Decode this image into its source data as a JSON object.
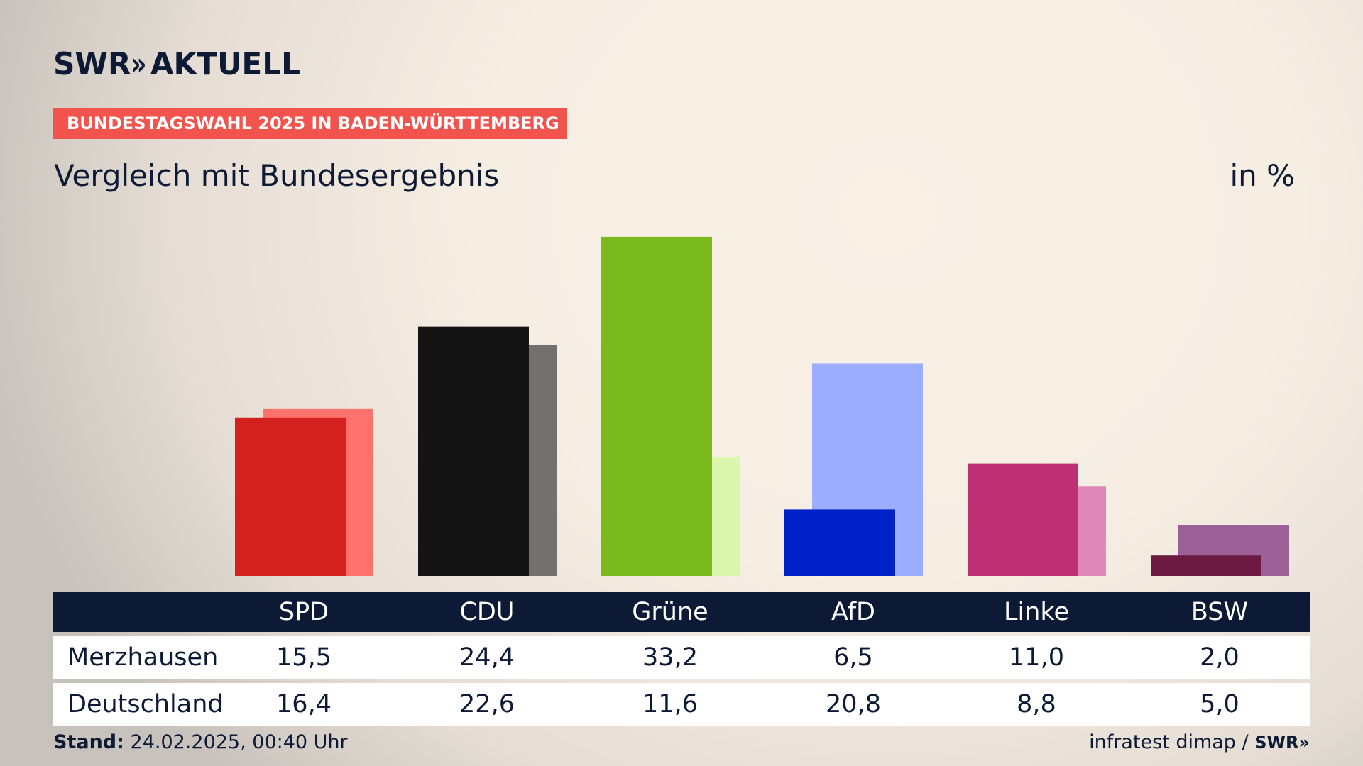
{
  "header": {
    "logo_text": "SWR",
    "logo_chevrons": "»",
    "logo_suffix": "AKTUELL",
    "banner": "BUNDESTAGSWAHL 2025 IN BADEN-WÜRTTEMBERG",
    "subtitle": "Vergleich mit Bundesergebnis",
    "unit": "in %"
  },
  "chart_data": {
    "type": "bar",
    "title": "Vergleich mit Bundesergebnis",
    "ylabel": "in %",
    "ylim": [
      0,
      36
    ],
    "grid": false,
    "categories": [
      "SPD",
      "CDU",
      "Grüne",
      "AfD",
      "Linke",
      "BSW"
    ],
    "series": [
      {
        "name": "Merzhausen",
        "values": [
          15.5,
          24.4,
          33.2,
          6.5,
          11.0,
          2.0
        ],
        "colors": [
          "#d52020",
          "#141414",
          "#7aba1d",
          "#0021c7",
          "#bd3073",
          "#6c1a42"
        ]
      },
      {
        "name": "Deutschland",
        "values": [
          16.4,
          22.6,
          11.6,
          20.8,
          8.8,
          5.0
        ],
        "colors": [
          "#ff736c",
          "#73716f",
          "#dbf7ad",
          "#9cacff",
          "#de89b7",
          "#9b6097"
        ]
      }
    ]
  },
  "table": {
    "headers": [
      "SPD",
      "CDU",
      "Grüne",
      "AfD",
      "Linke",
      "BSW"
    ],
    "rows": [
      {
        "label": "Merzhausen",
        "values": [
          "15,5",
          "24,4",
          "33,2",
          "6,5",
          "11,0",
          "2,0"
        ]
      },
      {
        "label": "Deutschland",
        "values": [
          "16,4",
          "22,6",
          "11,6",
          "20,8",
          "8,8",
          "5,0"
        ]
      }
    ]
  },
  "footer": {
    "stand_label": "Stand:",
    "stand_value": "24.02.2025, 00:40 Uhr",
    "source": "infratest dimap",
    "separator": "/",
    "source_logo": "SWR»"
  }
}
